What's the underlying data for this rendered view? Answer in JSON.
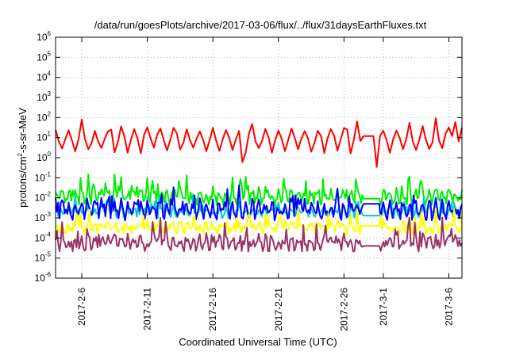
{
  "chart_data": {
    "type": "line",
    "title": "/data/run/goesPlots/archive/2017-03-06/flux/../flux/31daysEarthFluxes.txt",
    "xlabel": "Coordinated Universal Time (UTC)",
    "ylabel": {
      "base": "protons/cm",
      "exp": "2",
      "rest": "-s-sr-MeV"
    },
    "yscale": "log",
    "ylim": [
      1e-06,
      1000000.0
    ],
    "y_ticks": [
      {
        "base": "10",
        "exp": "-6"
      },
      {
        "base": "10",
        "exp": "-5"
      },
      {
        "base": "10",
        "exp": "-4"
      },
      {
        "base": "10",
        "exp": "-3"
      },
      {
        "base": "10",
        "exp": "-2"
      },
      {
        "base": "10",
        "exp": "-1"
      },
      {
        "base": "10",
        "exp": "0"
      },
      {
        "base": "10",
        "exp": "1"
      },
      {
        "base": "10",
        "exp": "2"
      },
      {
        "base": "10",
        "exp": "3"
      },
      {
        "base": "10",
        "exp": "4"
      },
      {
        "base": "10",
        "exp": "5"
      },
      {
        "base": "10",
        "exp": "6"
      }
    ],
    "xlim": [
      "2017-02-04",
      "2017-03-07"
    ],
    "x_ticks": [
      "2017-2-6",
      "2017-2-11",
      "2017-2-16",
      "2017-2-21",
      "2017-2-26",
      "2017-3-1",
      "2017-3-6"
    ],
    "grid": true,
    "gap_start": "2017-02-27T12:00",
    "gap_end": "2017-02-28T18:00",
    "series": [
      {
        "color": "#ff0000",
        "base": 8,
        "spread": 0.55,
        "jitter": 0.15,
        "period": 1.0,
        "step": 0.25,
        "gap_value": 12,
        "seed": 11,
        "events": [
          {
            "date": "2017-02-06T02:00",
            "value": 80
          },
          {
            "date": "2017-02-28T12:00",
            "value": 0.35
          },
          {
            "date": "2017-03-06T12:00",
            "value": 60
          },
          {
            "date": "2017-02-18T06:00",
            "value": 0.6
          }
        ]
      },
      {
        "color": "#00ee00",
        "base": 0.012,
        "spread": 0.25,
        "jitter": 0.25,
        "period": 0.5,
        "step": 0.1,
        "gap_value": 0.009,
        "seed": 23,
        "events": []
      },
      {
        "color": "#00cccc",
        "base": 0.002,
        "spread": 0.15,
        "jitter": 0.2,
        "period": 0.5,
        "step": 0.1,
        "gap_value": 0.0013,
        "seed": 37,
        "events": []
      },
      {
        "color": "#0000ff",
        "base": 0.0025,
        "spread": 0.3,
        "jitter": 0.3,
        "period": 0.5,
        "step": 0.1,
        "gap_value": 0.005,
        "seed": 41,
        "events": []
      },
      {
        "color": "#ffff00",
        "base": 0.00035,
        "spread": 0.15,
        "jitter": 0.25,
        "period": 0.5,
        "step": 0.1,
        "gap_value": 0.0004,
        "seed": 53,
        "events": []
      },
      {
        "color": "#993366",
        "base": 6e-05,
        "spread": 0.2,
        "jitter": 0.3,
        "period": 0.5,
        "step": 0.1,
        "gap_value": 4e-05,
        "seed": 67,
        "events": []
      }
    ]
  }
}
